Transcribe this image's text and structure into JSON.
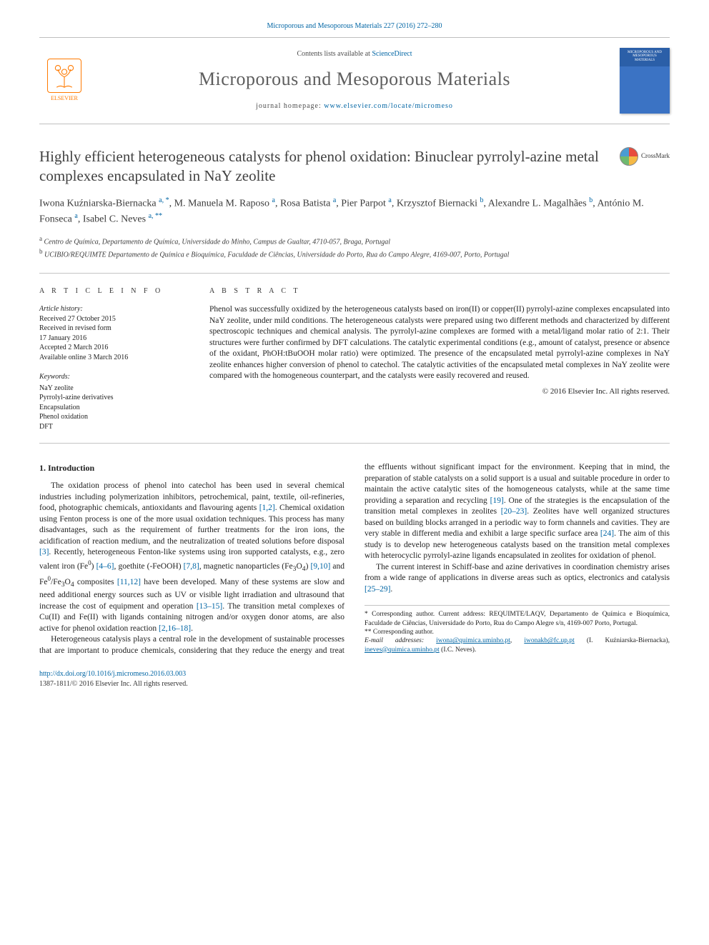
{
  "citation": "Microporous and Mesoporous Materials 227 (2016) 272–280",
  "masthead": {
    "publisher_name": "ELSEVIER",
    "contents_prefix": "Contents lists available at ",
    "contents_link": "ScienceDirect",
    "journal_name": "Microporous and Mesoporous Materials",
    "homepage_prefix": "journal homepage: ",
    "homepage": "www.elsevier.com/locate/micromeso",
    "cover_text": "MICROPOROUS AND MESOPOROUS MATERIALS"
  },
  "crossmark_label": "CrossMark",
  "title": "Highly efficient heterogeneous catalysts for phenol oxidation: Binuclear pyrrolyl-azine metal complexes encapsulated in NaY zeolite",
  "authors_html": "Iwona Kuźniarska-Biernacka <sup>a, *</sup>, M. Manuela M. Raposo <sup>a</sup>, Rosa Batista <sup>a</sup>, Pier Parpot <sup>a</sup>, Krzysztof Biernacki <sup>b</sup>, Alexandre L. Magalhães <sup>b</sup>, António M. Fonseca <sup>a</sup>, Isabel C. Neves <sup>a, **</sup>",
  "affiliations": [
    {
      "tag": "a",
      "text": "Centro de Química, Departamento de Química, Universidade do Minho, Campus de Gualtar, 4710-057, Braga, Portugal"
    },
    {
      "tag": "b",
      "text": "UCIBIO/REQUIMTE Departamento de Química e Bioquímica, Faculdade de Ciências, Universidade do Porto, Rua do Campo Alegre, 4169-007, Porto, Portugal"
    }
  ],
  "article_info": {
    "label": "A R T I C L E   I N F O",
    "history_label": "Article history:",
    "history": [
      "Received 27 October 2015",
      "Received in revised form",
      "17 January 2016",
      "Accepted 2 March 2016",
      "Available online 3 March 2016"
    ],
    "keywords_label": "Keywords:",
    "keywords": [
      "NaY zeolite",
      "Pyrrolyl-azine derivatives",
      "Encapsulation",
      "Phenol oxidation",
      "DFT"
    ]
  },
  "abstract": {
    "label": "A B S T R A C T",
    "text": "Phenol was successfully oxidized by the heterogeneous catalysts based on iron(II) or copper(II) pyrrolyl-azine complexes encapsulated into NaY zeolite, under mild conditions. The heterogeneous catalysts were prepared using two different methods and characterized by different spectroscopic techniques and chemical analysis. The pyrrolyl-azine complexes are formed with a metal/ligand molar ratio of 2:1. Their structures were further confirmed by DFT calculations. The catalytic experimental conditions (e.g., amount of catalyst, presence or absence of the oxidant, PhOH:tBuOOH molar ratio) were optimized. The presence of the encapsulated metal pyrrolyl-azine complexes in NaY zeolite enhances higher conversion of phenol to catechol. The catalytic activities of the encapsulated metal complexes in NaY zeolite were compared with the homogeneous counterpart, and the catalysts were easily recovered and reused.",
    "copyright": "© 2016 Elsevier Inc. All rights reserved."
  },
  "body": {
    "section_heading": "1. Introduction",
    "p1_a": "The oxidation process of phenol into catechol has been used in several chemical industries including polymerization inhibitors, petrochemical, paint, textile, oil-refineries, food, photographic chemicals, antioxidants and flavouring agents ",
    "ref1": "[1,2]",
    "p1_b": ". Chemical oxidation using Fenton process is one of the more usual oxidation techniques. This process has many disadvantages, such as the requirement of further treatments for the iron ions, the acidification of reaction medium, and the neutralization of treated solutions before disposal ",
    "ref2": "[3]",
    "p1_c": ". Recently, heterogeneous Fenton-like systems using iron supported catalysts, e.g., zero valent iron (Fe",
    "sup0a": "0",
    "p1_d": ") ",
    "ref3": "[4–6]",
    "p1_e": ", goethite (-FeOOH) ",
    "ref4": "[7,8]",
    "p1_f": ", magnetic nanoparticles (Fe",
    "sub3a": "3",
    "p1_o4a": "O",
    "sub4a": "4",
    "p1_g": ") ",
    "ref5": "[9,10]",
    "p1_h": " and Fe",
    "sup0b": "0",
    "p1_slash": "/Fe",
    "sub3b": "3",
    "p1_o4b": "O",
    "sub4b": "4",
    "p1_i": " composites ",
    "ref6": "[11,12]",
    "p1_j": " have been developed. Many of these systems are slow and need additional energy sources such as UV or visible light irradiation and ultrasound that increase the cost of equipment and operation ",
    "ref7": "[13–15]",
    "p1_k": ". The transition metal complexes of Cu(II) and Fe(II) with ligands containing nitrogen and/or oxygen donor atoms, are also active for phenol oxidation reaction ",
    "ref8": "[2,16–18]",
    "p1_l": ".",
    "p2_a": "Heterogeneous catalysis plays a central role in the development of sustainable processes that are important to produce chemicals, considering that they reduce the energy and treat the effluents without significant impact for the environment. Keeping that in mind, the preparation of stable catalysts on a solid support is a usual and suitable procedure in order to maintain the active catalytic sites of the homogeneous catalysts, while at the same time providing a separation and recycling ",
    "ref9": "[19]",
    "p2_b": ". One of the strategies is the encapsulation of the transition metal complexes in zeolites ",
    "ref10": "[20–23]",
    "p2_c": ". Zeolites have well organized structures based on building blocks arranged in a periodic way to form channels and cavities. They are very stable in different media and exhibit a large specific surface area ",
    "ref11": "[24]",
    "p2_d": ". The aim of this study is to develop new heterogeneous catalysts based on the transition metal complexes with heterocyclic pyrrolyl-azine ligands encapsulated in zeolites for oxidation of phenol.",
    "p3_a": "The current interest in Schiff-base and azine derivatives in coordination chemistry arises from a wide range of applications in diverse areas such as optics, electronics and catalysis ",
    "ref12": "[25–29]",
    "p3_b": "."
  },
  "footnotes": {
    "star1_a": "* Corresponding author. Current address: REQUIMTE/LAQV, Departamento de Química e Bioquímica, Faculdade de Ciências, Universidade do Porto, Rua do Campo Alegre s/n, 4169-007 Porto, Portugal.",
    "star2": "** Corresponding author.",
    "email_label": "E-mail addresses: ",
    "email1": "iwona@quimica.uminho.pt",
    "email_sep1": ", ",
    "email2": "iwonakb@fc.up.pt",
    "email_name1": " (I. Kuźniarska-Biernacka), ",
    "email3": "ineves@quimica.uminho.pt",
    "email_name2": " (I.C. Neves)."
  },
  "footer": {
    "doi": "http://dx.doi.org/10.1016/j.micromeso.2016.03.003",
    "issn": "1387-1811/© 2016 Elsevier Inc. All rights reserved."
  },
  "colors": {
    "link": "#0065a4",
    "text": "#222222",
    "heading": "#414141",
    "publisher": "#ff7a00",
    "rule": "#c4c4c4"
  }
}
